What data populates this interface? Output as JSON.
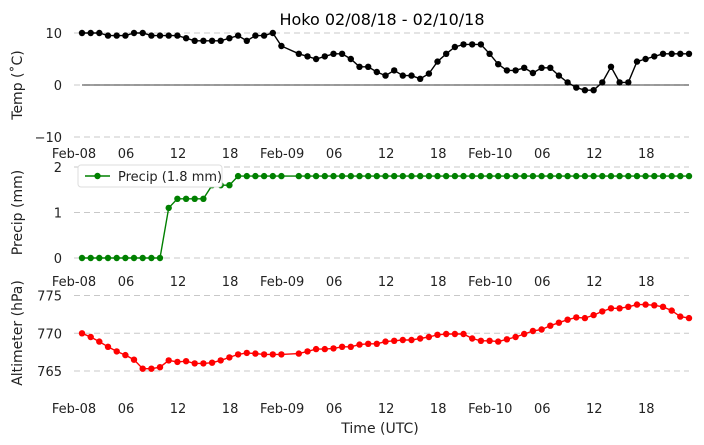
{
  "chart_data": [
    {
      "type": "line",
      "title": "Hoko 02/08/18 - 02/10/18",
      "ylabel": "Temp (˚C)",
      "xlabel": "",
      "ylim": [
        -10,
        10
      ],
      "yticks": [
        "−10",
        "0",
        "10"
      ],
      "yticks_values": [
        -10,
        0,
        10
      ],
      "grid": true,
      "zero_line": true,
      "x_tick_labels": [
        "Feb-08",
        "06",
        "12",
        "18",
        "Feb-09",
        "06",
        "12",
        "18",
        "Feb-10",
        "06",
        "12",
        "18"
      ],
      "x_tick_hours": [
        0,
        6,
        12,
        18,
        24,
        30,
        36,
        42,
        48,
        54,
        60,
        66
      ],
      "x_range_hours": [
        0,
        70
      ],
      "series": [
        {
          "color": "#000000",
          "x": [
            0,
            1,
            2,
            3,
            4,
            5,
            6,
            7,
            8,
            9,
            10,
            11,
            12,
            13,
            14,
            15,
            16,
            17,
            18,
            19,
            20,
            21,
            22,
            23,
            25,
            26,
            27,
            28,
            29,
            30,
            31,
            32,
            33,
            34,
            35,
            36,
            37,
            38,
            39,
            40,
            41,
            42,
            43,
            44,
            45,
            46,
            47,
            48,
            49,
            50,
            51,
            52,
            53,
            54,
            55,
            56,
            57,
            58,
            59,
            60,
            61,
            62,
            63,
            64,
            65,
            66,
            67,
            68,
            69,
            70
          ],
          "values": [
            10,
            10,
            10,
            9.5,
            9.5,
            9.5,
            10,
            10,
            9.5,
            9.5,
            9.5,
            9.5,
            9,
            8.5,
            8.5,
            8.5,
            8.5,
            9,
            9.5,
            8.5,
            9.5,
            9.5,
            10,
            7.5,
            6,
            5.5,
            5,
            5.5,
            6,
            6,
            5,
            3.5,
            3.5,
            2.5,
            1.8,
            2.8,
            1.8,
            1.8,
            1.2,
            2.2,
            4.5,
            6,
            7.3,
            7.8,
            7.8,
            7.8,
            6,
            4,
            2.8,
            2.8,
            3.3,
            2.3,
            3.3,
            3.3,
            1.8,
            0.5,
            -0.5,
            -1,
            -1,
            0.5,
            3.5,
            0.5,
            0.5,
            4.5,
            5,
            5.5,
            6,
            6,
            6,
            6
          ]
        }
      ]
    },
    {
      "type": "line",
      "ylabel": "Precip (mm)",
      "xlabel": "",
      "ylim": [
        -0.2,
        2.0
      ],
      "yticks": [
        "0",
        "1",
        "2"
      ],
      "yticks_values": [
        0,
        1,
        2
      ],
      "grid": true,
      "legend": "top-left",
      "x_tick_labels": [
        "Feb-08",
        "06",
        "12",
        "18",
        "Feb-09",
        "06",
        "12",
        "18",
        "Feb-10",
        "06",
        "12",
        "18"
      ],
      "x_tick_hours": [
        0,
        6,
        12,
        18,
        24,
        30,
        36,
        42,
        48,
        54,
        60,
        66
      ],
      "x_range_hours": [
        0,
        70
      ],
      "series": [
        {
          "name": "Precip (1.8 mm)",
          "color": "#008000",
          "x": [
            0,
            1,
            2,
            3,
            4,
            5,
            6,
            7,
            8,
            9,
            10,
            11,
            12,
            13,
            14,
            15,
            16,
            17,
            18,
            19,
            20,
            21,
            22,
            23,
            25,
            26,
            27,
            28,
            29,
            30,
            31,
            32,
            33,
            34,
            35,
            36,
            37,
            38,
            39,
            40,
            41,
            42,
            43,
            44,
            45,
            46,
            47,
            48,
            49,
            50,
            51,
            52,
            53,
            54,
            55,
            56,
            57,
            58,
            59,
            60,
            61,
            62,
            63,
            64,
            65,
            66,
            67,
            68,
            69,
            70
          ],
          "values": [
            0,
            0,
            0,
            0,
            0,
            0,
            0,
            0,
            0,
            0,
            1.1,
            1.3,
            1.3,
            1.3,
            1.3,
            1.6,
            1.6,
            1.6,
            1.8,
            1.8,
            1.8,
            1.8,
            1.8,
            1.8,
            1.8,
            1.8,
            1.8,
            1.8,
            1.8,
            1.8,
            1.8,
            1.8,
            1.8,
            1.8,
            1.8,
            1.8,
            1.8,
            1.8,
            1.8,
            1.8,
            1.8,
            1.8,
            1.8,
            1.8,
            1.8,
            1.8,
            1.8,
            1.8,
            1.8,
            1.8,
            1.8,
            1.8,
            1.8,
            1.8,
            1.8,
            1.8,
            1.8,
            1.8,
            1.8,
            1.8,
            1.8,
            1.8,
            1.8,
            1.8,
            1.8,
            1.8,
            1.8,
            1.8,
            1.8,
            1.8
          ]
        }
      ]
    },
    {
      "type": "line",
      "ylabel": "Altimeter (hPa)",
      "xlabel": "Time (UTC)",
      "ylim": [
        761,
        775
      ],
      "yticks": [
        "765",
        "770",
        "775"
      ],
      "yticks_values": [
        765,
        770,
        775
      ],
      "grid": true,
      "x_tick_labels": [
        "Feb-08",
        "06",
        "12",
        "18",
        "Feb-09",
        "06",
        "12",
        "18",
        "Feb-10",
        "06",
        "12",
        "18"
      ],
      "x_tick_hours": [
        0,
        6,
        12,
        18,
        24,
        30,
        36,
        42,
        48,
        54,
        60,
        66
      ],
      "x_range_hours": [
        0,
        70
      ],
      "series": [
        {
          "color": "#ff0000",
          "x": [
            0,
            1,
            2,
            3,
            4,
            5,
            6,
            7,
            8,
            9,
            10,
            11,
            12,
            13,
            14,
            15,
            16,
            17,
            18,
            19,
            20,
            21,
            22,
            23,
            25,
            26,
            27,
            28,
            29,
            30,
            31,
            32,
            33,
            34,
            35,
            36,
            37,
            38,
            39,
            40,
            41,
            42,
            43,
            44,
            45,
            46,
            47,
            48,
            49,
            50,
            51,
            52,
            53,
            54,
            55,
            56,
            57,
            58,
            59,
            60,
            61,
            62,
            63,
            64,
            65,
            66,
            67,
            68,
            69,
            70
          ],
          "values": [
            770,
            769.5,
            768.9,
            768.2,
            767.6,
            767.1,
            766.5,
            765.3,
            765.3,
            765.5,
            766.4,
            766.2,
            766.3,
            766,
            766,
            766.1,
            766.4,
            766.8,
            767.2,
            767.4,
            767.3,
            767.2,
            767.2,
            767.2,
            767.3,
            767.6,
            767.9,
            767.9,
            768,
            768.2,
            768.2,
            768.5,
            768.6,
            768.6,
            768.9,
            769,
            769.1,
            769.1,
            769.3,
            769.5,
            769.8,
            769.9,
            769.9,
            769.9,
            769.3,
            769,
            769,
            768.9,
            769.2,
            769.5,
            769.9,
            770.3,
            770.5,
            771,
            771.4,
            771.8,
            772.1,
            772,
            772.4,
            772.9,
            773.3,
            773.3,
            773.5,
            773.8,
            773.8,
            773.7,
            773.5,
            773,
            772.2,
            772
          ]
        }
      ]
    }
  ]
}
